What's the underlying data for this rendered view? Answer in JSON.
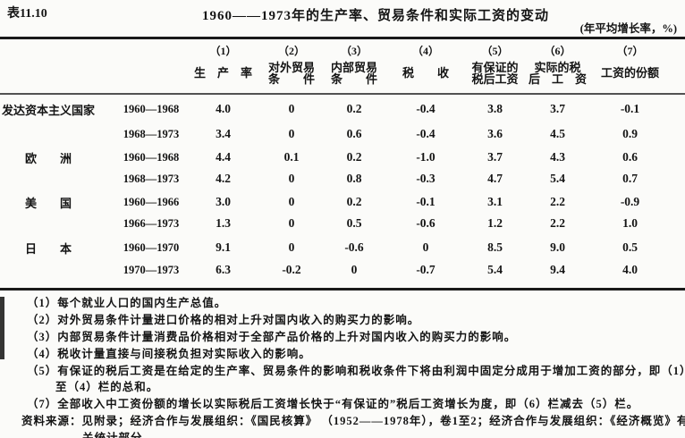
{
  "page": {
    "table_number": "表11.10",
    "title": "1960——1973年的生产率、贸易条件和实际工资的变动",
    "unit_note": "(年平均增长率，%)"
  },
  "header": {
    "cols": [
      {
        "num": "（1）",
        "l1": "生　产　率",
        "l2": ""
      },
      {
        "num": "（2）",
        "l1": "对外贸易",
        "l2": "条　　件"
      },
      {
        "num": "（3）",
        "l1": "内部贸易",
        "l2": "条　　件"
      },
      {
        "num": "（4）",
        "l1": "税　　收",
        "l2": ""
      },
      {
        "num": "（5）",
        "l1": "有保证的",
        "l2": "税后工资"
      },
      {
        "num": "（6）",
        "l1": "实际的税",
        "l2": "后　工　资"
      },
      {
        "num": "（7）",
        "l1": "工资的份额",
        "l2": ""
      }
    ]
  },
  "rows": [
    {
      "group": "发达资本主义国家",
      "period": "1960—1968",
      "values": [
        "4.0",
        "0",
        "0.2",
        "-0.4",
        "3.8",
        "3.7",
        "-0.1"
      ]
    },
    {
      "group": "",
      "period": "1968—1973",
      "values": [
        "3.4",
        "0",
        "0.6",
        "-0.4",
        "3.6",
        "4.5",
        "0.9"
      ]
    },
    {
      "group": "欧　　洲",
      "period": "1960—1968",
      "values": [
        "4.4",
        "0.1",
        "0.2",
        "-1.0",
        "3.7",
        "4.3",
        "0.6"
      ]
    },
    {
      "group": "",
      "period": "1968—1973",
      "values": [
        "4.2",
        "0",
        "0.8",
        "-0.3",
        "4.7",
        "5.4",
        "0.7"
      ]
    },
    {
      "group": "美　　国",
      "period": "1960—1966",
      "values": [
        "3.0",
        "0",
        "0.2",
        "-0.1",
        "3.1",
        "2.2",
        "-0.9"
      ]
    },
    {
      "group": "",
      "period": "1966—1973",
      "values": [
        "1.3",
        "0",
        "0.5",
        "-0.6",
        "1.2",
        "2.2",
        "1.0"
      ]
    },
    {
      "group": "日　　本",
      "period": "1960—1970",
      "values": [
        "9.1",
        "0",
        "-0.6",
        "0",
        "8.5",
        "9.0",
        "0.5"
      ]
    },
    {
      "group": "",
      "period": "1970—1973",
      "values": [
        "6.3",
        "-0.2",
        "0",
        "-0.7",
        "5.4",
        "9.4",
        "4.0"
      ]
    }
  ],
  "footnotes": {
    "f1": "（1）每个就业人口的国内生产总值。",
    "f2": "（2）对外贸易条件计量进口价格的相对上升对国内收入的购买力的影响。",
    "f3": "（3）内部贸易条件计量消费品价格相对于全部产品价格的上升对国内收入的购买力的影响。",
    "f4": "（4）税收计量直接与间接税负担对实际收入的影响。",
    "f5": "（5）有保证的税后工资是在给定的生产率、贸易条件的影响和税收条件下将由利润中固定分成用于增加工资的部分，即（1）",
    "f5b": "至（4）栏的总和。",
    "f7": "（7）全部收入中工资份额的增长以实际税后工资增长快于“有保证的”税后工资增长为度，即（6）栏减去（5）栏。",
    "src": "资料来源：见附录；经济合作与发展组织：《国民核算》 （1952——1978年），卷1至2；经济合作与发展组织：《经济概览》有",
    "srcb": "关统计部分。"
  }
}
